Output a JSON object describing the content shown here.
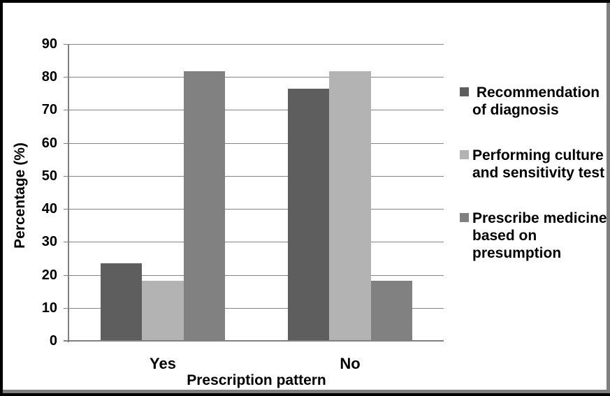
{
  "frame": {
    "outer_border_color": "#000000",
    "shadow_border_color": "#7f7f7f",
    "background": "#ffffff"
  },
  "chart_data": {
    "type": "bar",
    "xlabel": "Prescription pattern",
    "ylabel": "Percentage (%)",
    "categories": [
      "Yes",
      "No"
    ],
    "series": [
      {
        "name": "Recommendation of diagnosis",
        "color": "#5e5e5e",
        "values": [
          23.5,
          76.5
        ],
        "legend_lines": [
          " Recommendation",
          "of diagnosis"
        ]
      },
      {
        "name": "Performing culture and sensitivity test",
        "color": "#b3b3b3",
        "values": [
          18.2,
          81.8
        ],
        "legend_lines": [
          "Performing culture",
          "and sensitivity test"
        ]
      },
      {
        "name": "Prescribe medicine based on presumption",
        "color": "#818181",
        "values": [
          81.8,
          18.2
        ],
        "legend_lines": [
          "Prescribe medicine",
          "based on",
          "presumption"
        ]
      }
    ],
    "ylim": [
      0,
      90
    ],
    "yticks": [
      0,
      10,
      20,
      30,
      40,
      50,
      60,
      70,
      80,
      90
    ],
    "grid": true,
    "legend_position": "right",
    "colors": {
      "axis": "#808080",
      "gridline": "#848484",
      "text": "#000000",
      "background": "#ffffff"
    }
  }
}
